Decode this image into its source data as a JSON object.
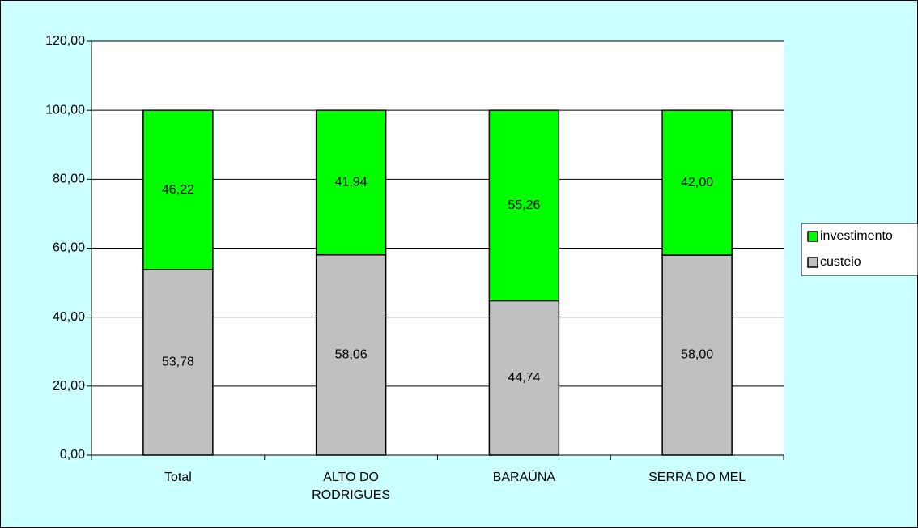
{
  "chart_data": {
    "type": "stacked_bar",
    "categories": [
      "Total",
      "ALTO DO RODRIGUES",
      "BARAÚNA",
      "SERRA DO MEL"
    ],
    "series": [
      {
        "name": "custeio",
        "color": "#c0c0c0",
        "values": [
          53.78,
          58.06,
          44.74,
          58.0
        ],
        "value_labels": [
          "53,78",
          "58,06",
          "44,74",
          "58,00"
        ]
      },
      {
        "name": "investimento",
        "color": "#00ff00",
        "values": [
          46.22,
          41.94,
          55.26,
          42.0
        ],
        "value_labels": [
          "46,22",
          "41,94",
          "55,26",
          "42,00"
        ]
      }
    ],
    "ylim": [
      0,
      120
    ],
    "yticks": [
      {
        "value": 0,
        "label": "0,00"
      },
      {
        "value": 20,
        "label": "20,00"
      },
      {
        "value": 40,
        "label": "40,00"
      },
      {
        "value": 60,
        "label": "60,00"
      },
      {
        "value": 80,
        "label": "80,00"
      },
      {
        "value": 100,
        "label": "100,00"
      },
      {
        "value": 120,
        "label": "120,00"
      }
    ],
    "grid": true,
    "legend": "right"
  }
}
